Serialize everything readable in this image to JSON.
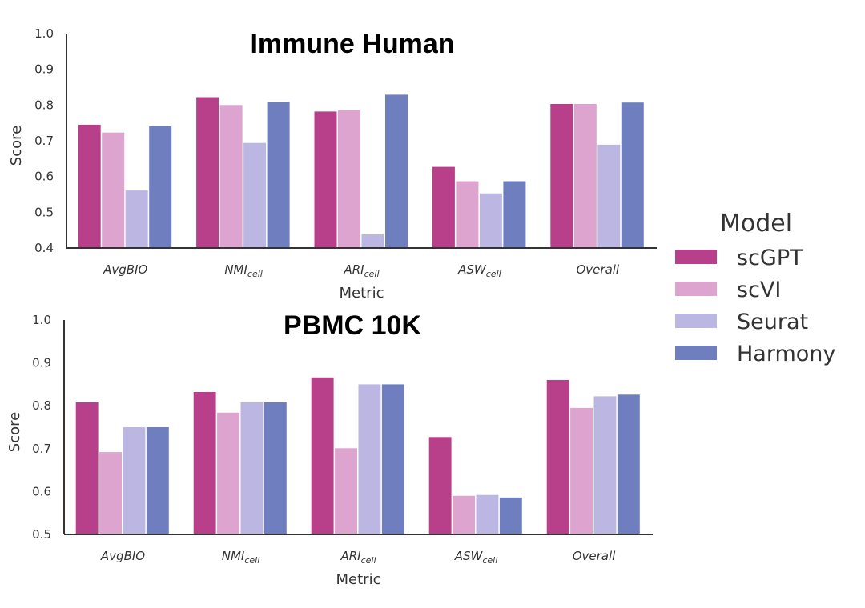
{
  "legend": {
    "title": "Model",
    "entries": [
      {
        "name": "scGPT",
        "color": "#B8408B"
      },
      {
        "name": "scVI",
        "color": "#DCA4CE"
      },
      {
        "name": "Seurat",
        "color": "#BCB6E2"
      },
      {
        "name": "Harmony",
        "color": "#6E7EBF"
      }
    ]
  },
  "chart_data": [
    {
      "type": "bar",
      "title": "Immune Human",
      "xlabel": "Metric",
      "ylabel": "Score",
      "ylim": [
        0.4,
        1.0
      ],
      "yticks": [
        "0.4",
        "0.5",
        "0.6",
        "0.7",
        "0.8",
        "0.9",
        "1.0"
      ],
      "categories": [
        {
          "main": "AvgBIO",
          "sub": ""
        },
        {
          "main": "NMI",
          "sub": "cell"
        },
        {
          "main": "ARI",
          "sub": "cell"
        },
        {
          "main": "ASW",
          "sub": "cell"
        },
        {
          "main": "Overall",
          "sub": ""
        }
      ],
      "series": [
        {
          "name": "scGPT",
          "values": [
            0.745,
            0.822,
            0.782,
            0.627,
            0.803
          ]
        },
        {
          "name": "scVI",
          "values": [
            0.723,
            0.8,
            0.786,
            0.587,
            0.803
          ]
        },
        {
          "name": "Seurat",
          "values": [
            0.561,
            0.694,
            0.438,
            0.553,
            0.689
          ]
        },
        {
          "name": "Harmony",
          "values": [
            0.741,
            0.808,
            0.829,
            0.587,
            0.807
          ]
        }
      ],
      "grid": false
    },
    {
      "type": "bar",
      "title": "PBMC 10K",
      "xlabel": "Metric",
      "ylabel": "Score",
      "ylim": [
        0.5,
        1.0
      ],
      "yticks": [
        "0.5",
        "0.6",
        "0.7",
        "0.8",
        "0.9",
        "1.0"
      ],
      "categories": [
        {
          "main": "AvgBIO",
          "sub": ""
        },
        {
          "main": "NMI",
          "sub": "cell"
        },
        {
          "main": "ARI",
          "sub": "cell"
        },
        {
          "main": "ASW",
          "sub": "cell"
        },
        {
          "main": "Overall",
          "sub": ""
        }
      ],
      "series": [
        {
          "name": "scGPT",
          "values": [
            0.808,
            0.832,
            0.866,
            0.727,
            0.86
          ]
        },
        {
          "name": "scVI",
          "values": [
            0.692,
            0.784,
            0.701,
            0.59,
            0.795
          ]
        },
        {
          "name": "Seurat",
          "values": [
            0.75,
            0.808,
            0.85,
            0.592,
            0.822
          ]
        },
        {
          "name": "Harmony",
          "values": [
            0.75,
            0.808,
            0.85,
            0.586,
            0.826
          ]
        }
      ],
      "grid": false
    }
  ]
}
